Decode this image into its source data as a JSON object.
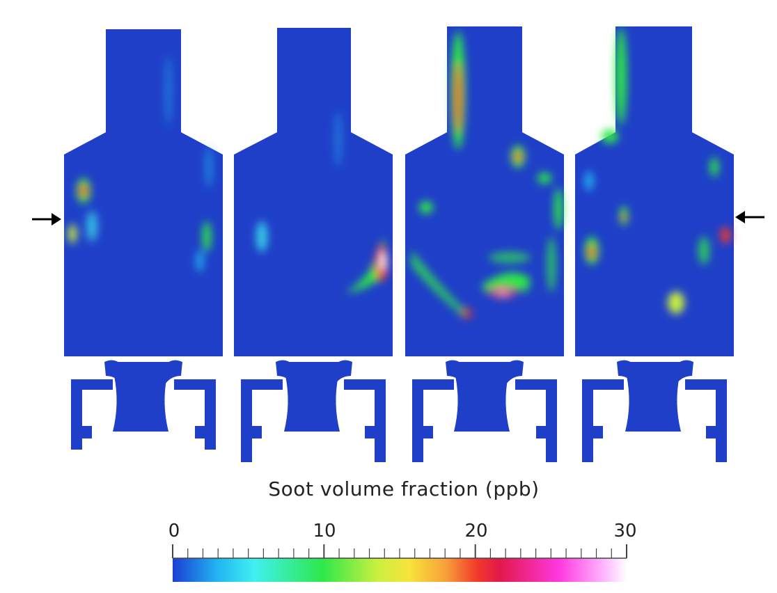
{
  "figure": {
    "panels": [
      {
        "id": "1"
      },
      {
        "id": "2"
      },
      {
        "id": "3"
      },
      {
        "id": "4"
      }
    ],
    "arrows": [
      {
        "direction": "right"
      },
      {
        "direction": "left"
      }
    ]
  },
  "colorbar": {
    "title": "Soot volume fraction (ppb)",
    "min": 0,
    "max": 30,
    "tick_labels": [
      "0",
      "10",
      "20",
      "30"
    ],
    "colors": [
      "#1a3fd4",
      "#22b6f2",
      "#3ff0f0",
      "#2ee84a",
      "#c8f040",
      "#f7e43a",
      "#f7a23a",
      "#f23a2a",
      "#e2184a",
      "#ff38e0",
      "#ffb6ff",
      "#ffffff"
    ]
  }
}
